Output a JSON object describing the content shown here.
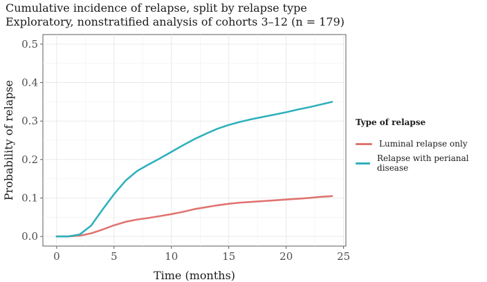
{
  "chart_data": {
    "type": "line",
    "title": "Cumulative incidence of relapse, split by relapse type",
    "subtitle": "Exploratory, nonstratified analysis of cohorts 3–12 (n = 179)",
    "xlabel": "Time (months)",
    "ylabel": "Probability of relapse",
    "xlim": [
      -1.2,
      25.2
    ],
    "ylim": [
      -0.025,
      0.525
    ],
    "xticks": [
      0,
      5,
      10,
      15,
      20,
      25
    ],
    "yticks": [
      0.0,
      0.1,
      0.2,
      0.3,
      0.4,
      0.5
    ],
    "xtick_labels": [
      "0",
      "5",
      "10",
      "15",
      "20",
      "25"
    ],
    "ytick_labels": [
      "0.0",
      "0.1",
      "0.2",
      "0.3",
      "0.4",
      "0.5"
    ],
    "grid": true,
    "legend": {
      "title": "Type of relapse",
      "position": "right"
    },
    "series": [
      {
        "name": "Luminal relapse only",
        "color": "#E07470",
        "x": [
          0,
          1,
          2,
          3,
          4,
          5,
          6,
          7,
          8,
          9,
          10,
          11,
          12,
          13,
          14,
          15,
          16,
          17,
          18,
          19,
          20,
          21,
          22,
          23,
          24
        ],
        "y": [
          0.0,
          0.0,
          0.002,
          0.008,
          0.018,
          0.029,
          0.038,
          0.044,
          0.048,
          0.053,
          0.058,
          0.064,
          0.071,
          0.076,
          0.081,
          0.085,
          0.088,
          0.09,
          0.092,
          0.094,
          0.096,
          0.098,
          0.1,
          0.103,
          0.105
        ]
      },
      {
        "name": "Relapse with perianal disease",
        "color": "#2EB1BC",
        "x": [
          0,
          1,
          2,
          3,
          4,
          5,
          6,
          7,
          8,
          9,
          10,
          11,
          12,
          13,
          14,
          15,
          16,
          17,
          18,
          19,
          20,
          21,
          22,
          23,
          24
        ],
        "y": [
          0.0,
          0.0,
          0.005,
          0.028,
          0.07,
          0.11,
          0.145,
          0.17,
          0.187,
          0.203,
          0.22,
          0.237,
          0.253,
          0.267,
          0.28,
          0.29,
          0.298,
          0.305,
          0.311,
          0.317,
          0.323,
          0.33,
          0.336,
          0.343,
          0.35
        ]
      }
    ]
  }
}
